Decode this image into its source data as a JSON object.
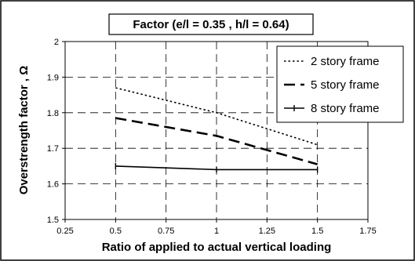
{
  "chart_data": {
    "type": "line",
    "title": "Factor  (e/l = 0.35 , h/l = 0.64)",
    "xlabel": "Ratio of applied to actual vertical loading",
    "ylabel": "Overstrength factor ,  Ω",
    "xlim": [
      0.25,
      1.75
    ],
    "ylim": [
      1.5,
      2.0
    ],
    "xticks": [
      "0.25",
      "0.5",
      "0.75",
      "1",
      "1.25",
      "1.5",
      "1.75"
    ],
    "yticks": [
      "1.5",
      "1.6",
      "1.7",
      "1.8",
      "1.9",
      "2"
    ],
    "grid": true,
    "legend_position": "top-right",
    "series": [
      {
        "name": "2 story frame",
        "style": "dotted",
        "x": [
          0.5,
          1.0,
          1.5
        ],
        "values": [
          1.87,
          1.8,
          1.71
        ]
      },
      {
        "name": "5 story frame",
        "style": "long-dash",
        "x": [
          0.5,
          1.0,
          1.5
        ],
        "values": [
          1.785,
          1.735,
          1.655
        ]
      },
      {
        "name": "8 story frame",
        "style": "solid",
        "x": [
          0.5,
          1.0,
          1.5
        ],
        "values": [
          1.65,
          1.64,
          1.64
        ]
      }
    ]
  }
}
